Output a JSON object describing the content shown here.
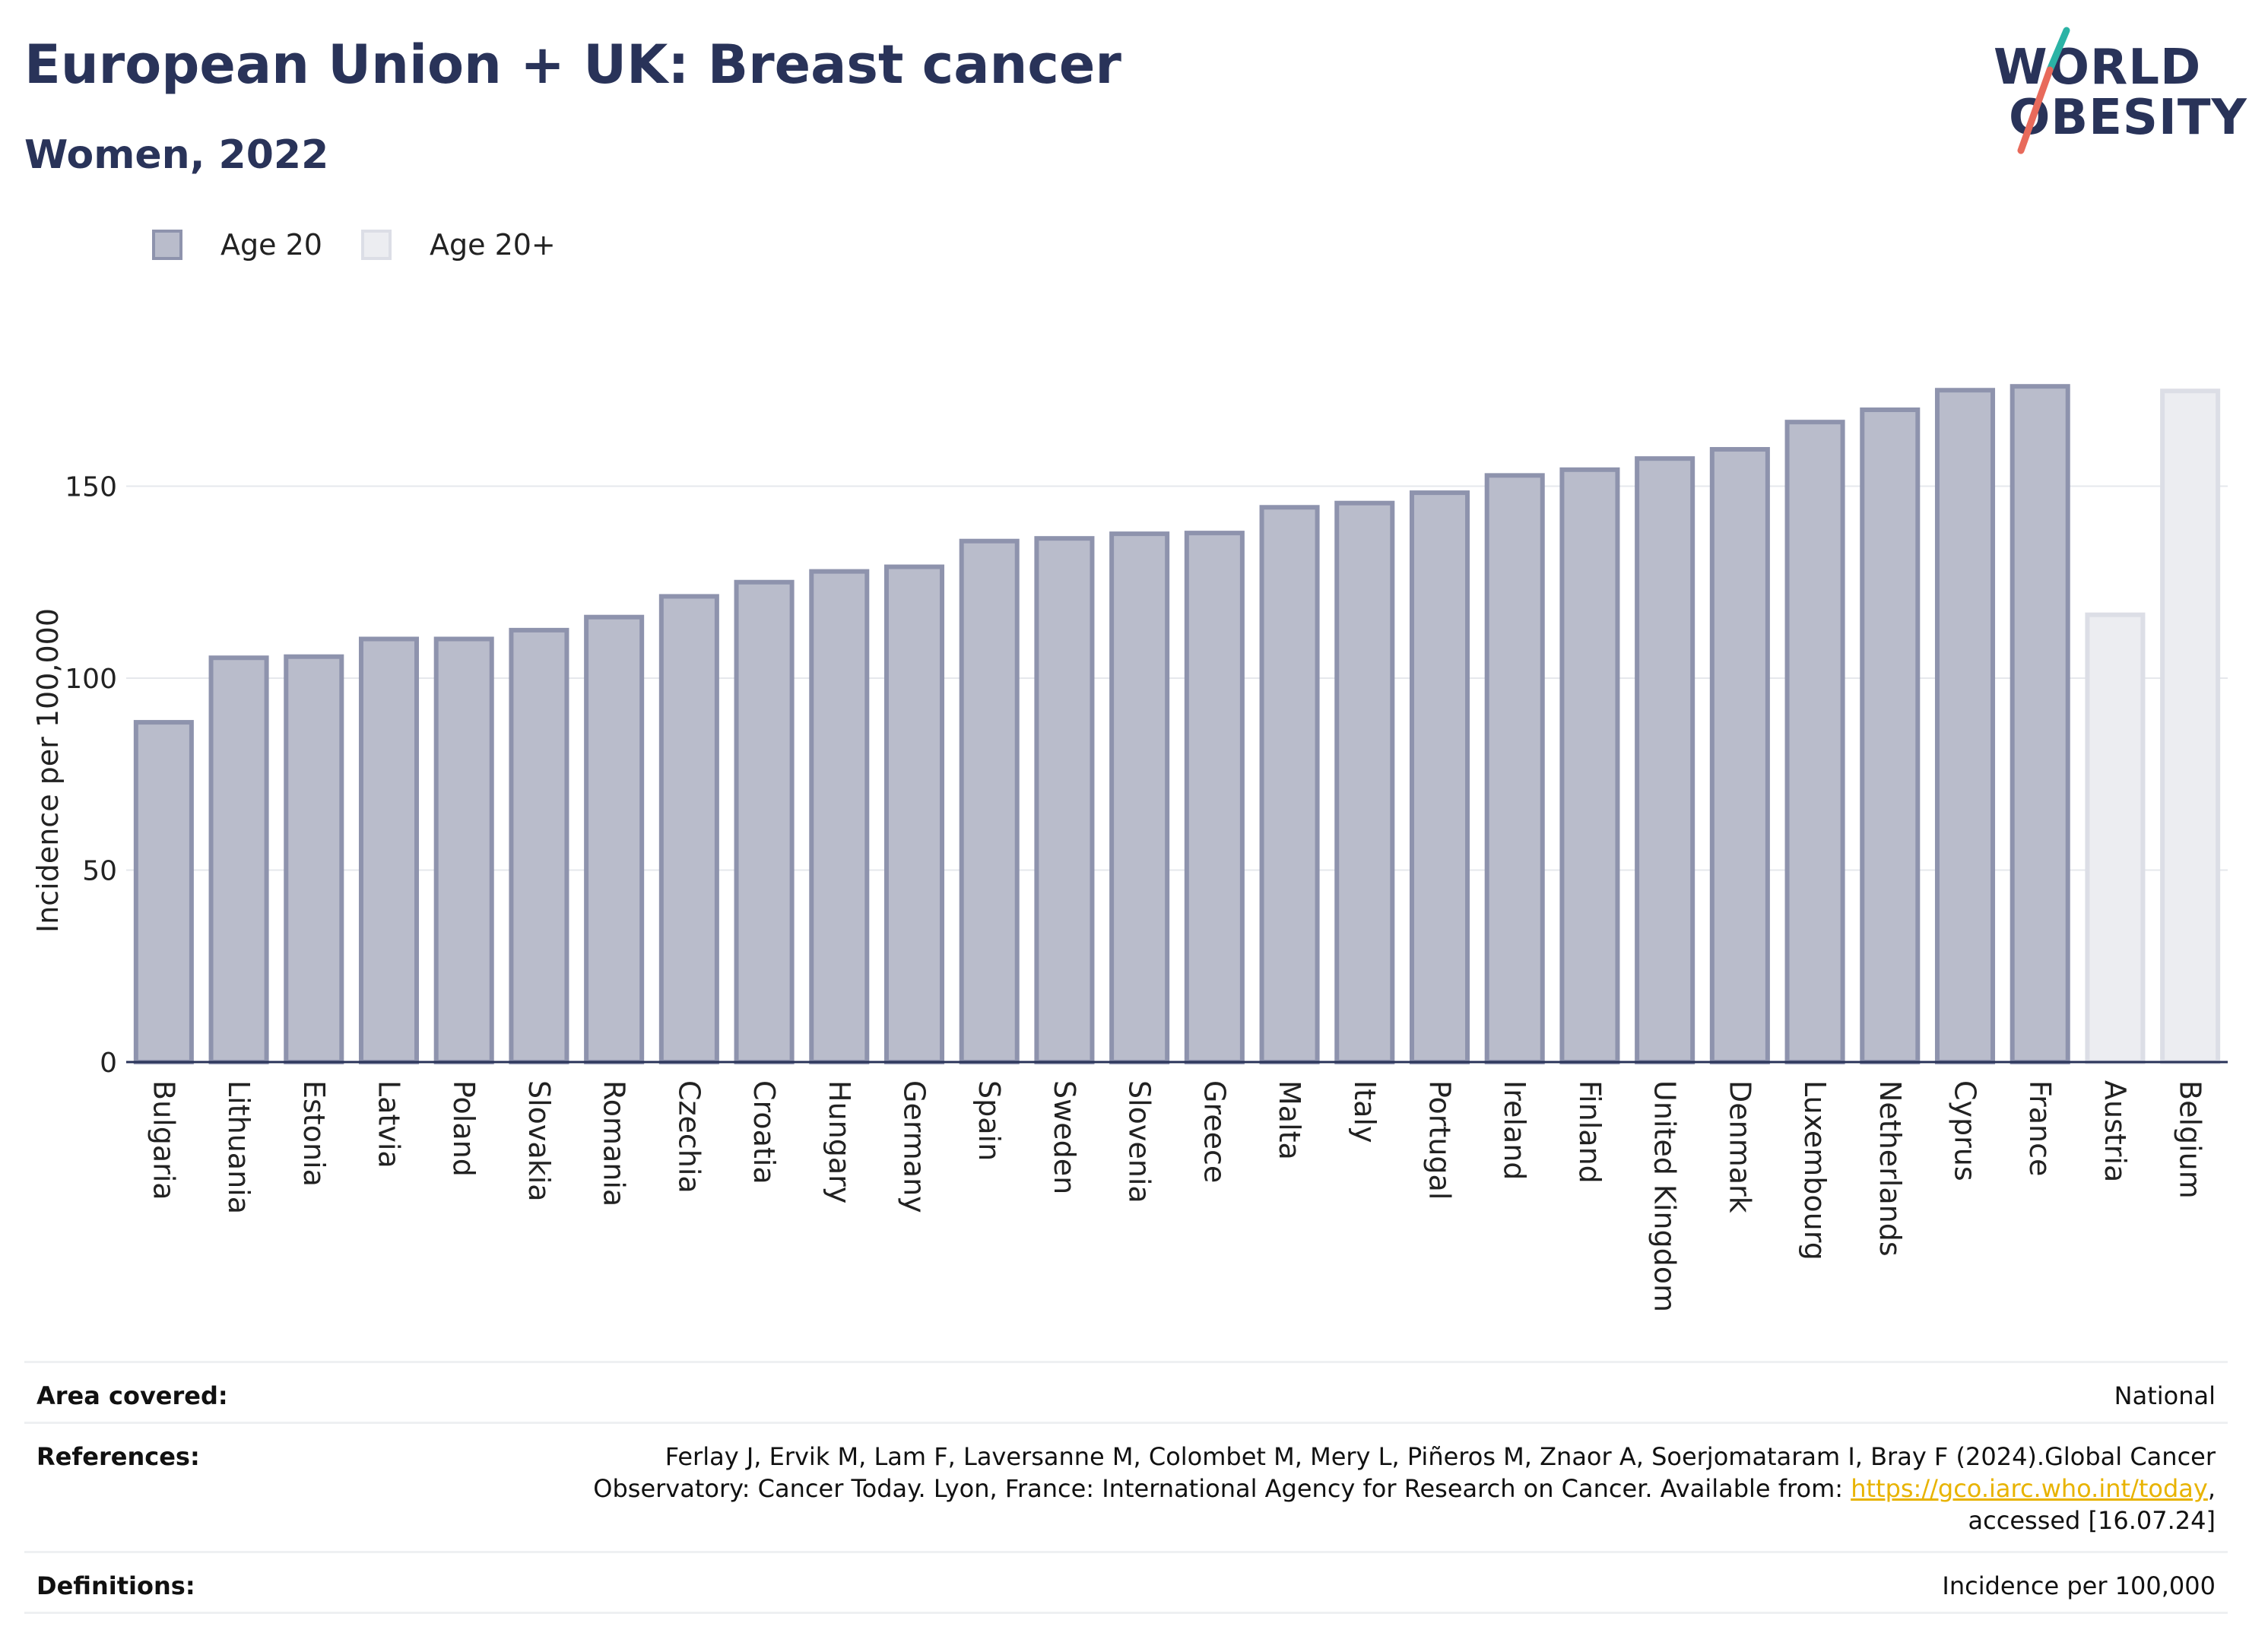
{
  "header": {
    "title": "European Union + UK: Breast cancer",
    "subtitle": "Women, 2022"
  },
  "logo": {
    "line1": "WORLD",
    "line2": "OBESITY",
    "slash_colors": [
      "#2bb3a5",
      "#e86a5b"
    ]
  },
  "legend": [
    {
      "label": "Age 20",
      "fill": "#b9bccb",
      "stroke": "#8e93ad"
    },
    {
      "label": "Age 20+",
      "fill": "#ecedf1",
      "stroke": "#dcdee6"
    }
  ],
  "chart_data": {
    "type": "bar",
    "ylabel": "Incidence per 100,000",
    "xlabel": "",
    "ylim": [
      0,
      200
    ],
    "yticks": [
      0,
      50,
      100,
      150
    ],
    "grid": true,
    "legend_position": "top-left",
    "categories": [
      "Bulgaria",
      "Lithuania",
      "Estonia",
      "Latvia",
      "Poland",
      "Slovakia",
      "Romania",
      "Czechia",
      "Croatia",
      "Hungary",
      "Germany",
      "Spain",
      "Sweden",
      "Slovenia",
      "Greece",
      "Malta",
      "Italy",
      "Portugal",
      "Ireland",
      "Finland",
      "United Kingdom",
      "Denmark",
      "Luxembourg",
      "Netherlands",
      "Cyprus",
      "France",
      "Austria",
      "Belgium"
    ],
    "values": [
      88.5,
      105.3,
      105.6,
      110.2,
      110.2,
      112.5,
      115.9,
      121.3,
      125.0,
      127.8,
      129.0,
      135.7,
      136.4,
      137.6,
      137.8,
      144.5,
      145.6,
      148.3,
      152.8,
      154.3,
      157.2,
      159.6,
      166.7,
      169.9,
      175.0,
      176.0,
      116.5,
      174.8
    ],
    "series_of_bar": [
      "Age 20",
      "Age 20",
      "Age 20",
      "Age 20",
      "Age 20",
      "Age 20",
      "Age 20",
      "Age 20",
      "Age 20",
      "Age 20",
      "Age 20",
      "Age 20",
      "Age 20",
      "Age 20",
      "Age 20",
      "Age 20",
      "Age 20",
      "Age 20",
      "Age 20",
      "Age 20",
      "Age 20",
      "Age 20",
      "Age 20",
      "Age 20",
      "Age 20",
      "Age 20",
      "Age 20+",
      "Age 20+"
    ]
  },
  "footer": {
    "area_key": "Area covered:",
    "area_value": "National",
    "references_key": "References:",
    "references_line1": "Ferlay J, Ervik M, Lam F, Laversanne M, Colombet M, Mery L, Piñeros M, Znaor A, Soerjomataram I, Bray F (2024).Global Cancer",
    "references_line2": "Observatory: Cancer Today. Lyon, France: International Agency for Research on Cancer. Available from: ",
    "references_link": "https://gco.iarc.who.int/today",
    "references_line2_end": ",",
    "references_line3": "accessed [16.07.24]",
    "definitions_key": "Definitions:",
    "definitions_value": "Incidence per 100,000"
  }
}
